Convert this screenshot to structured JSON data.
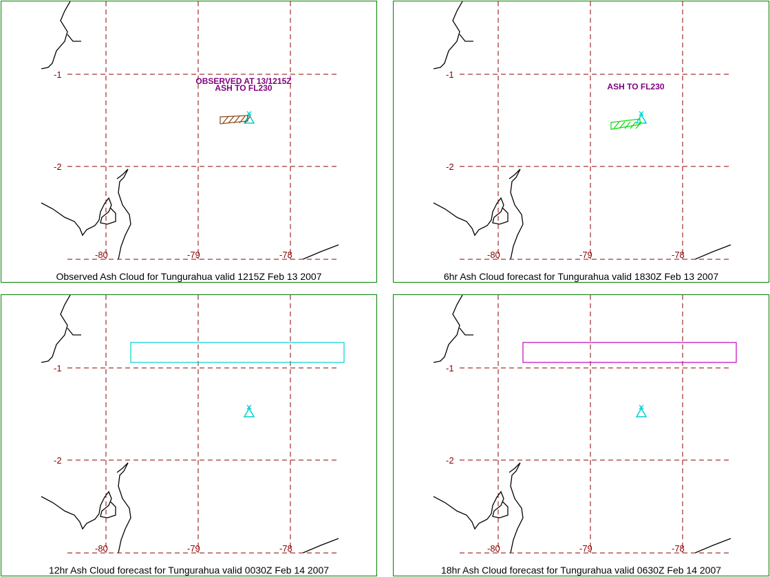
{
  "panels": [
    {
      "caption": "Observed Ash Cloud for Tungurahua valid 1215Z Feb 13 2007",
      "annotations": [
        "OBSERVED AT 13/1215Z",
        "ASH TO FL230"
      ],
      "ash_shape": "hatched-strip",
      "ash_color": "#8b4513"
    },
    {
      "caption": "6hr Ash Cloud forecast for Tungurahua valid 1830Z Feb 13 2007",
      "annotations": [
        "ASH TO FL230"
      ],
      "ash_shape": "hatched-strip",
      "ash_color": "#00dd00"
    },
    {
      "caption": "12hr Ash Cloud forecast for Tungurahua valid 0030Z Feb 14 2007",
      "annotations": [],
      "ash_shape": "box",
      "ash_color": "#00d0d0"
    },
    {
      "caption": "18hr Ash Cloud forecast for Tungurahua valid 0630Z Feb 14 2007",
      "annotations": [],
      "ash_shape": "box",
      "ash_color": "#c000c0"
    }
  ],
  "lat_labels": [
    "-1",
    "-2"
  ],
  "lon_labels": [
    "-80",
    "-79",
    "-78"
  ],
  "colors": {
    "frame": "#008000",
    "grid": "#8b0000",
    "volcano": "#00d0d0",
    "annotation": "#800080",
    "coast": "#000000"
  },
  "icons": {
    "volcano": "volcano-icon"
  }
}
